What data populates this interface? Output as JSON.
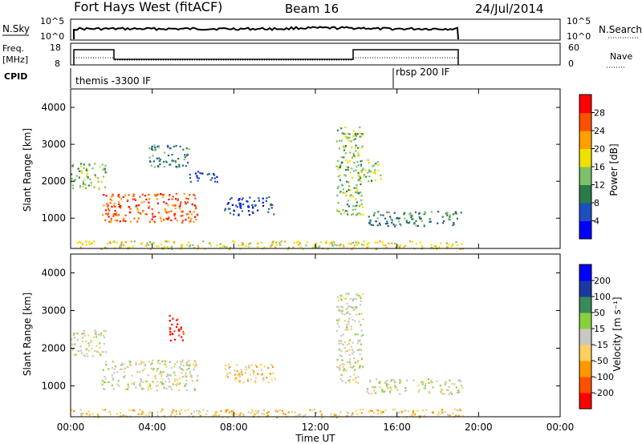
{
  "header": {
    "site": "Fort Hays West (fitACF)",
    "beam": "Beam 16",
    "date": "24/Jul/2014"
  },
  "status_panels": {
    "nsky": {
      "label": "N.Sky",
      "ticks": [
        "10^5",
        "10^0"
      ]
    },
    "nsearch": {
      "label": "N.Search",
      "ticks": [
        "10^5",
        "10^0"
      ]
    },
    "freq": {
      "label_line1": "Freq.",
      "label_line2": "[MHz]",
      "ticks": [
        "18",
        "8"
      ]
    },
    "nave": {
      "label": "Nave",
      "ticks": [
        "60",
        "0"
      ]
    },
    "cpid": {
      "label": "CPID",
      "entries": [
        {
          "text": "themis -3300 IF",
          "start_hour": 0
        },
        {
          "text": "rbsp 200 IF",
          "start_hour": 16
        }
      ]
    }
  },
  "chart_data": [
    {
      "type": "heatmap",
      "name": "power",
      "ylabel": "Slant Range [km]",
      "xlim": [
        0,
        24
      ],
      "ylim": [
        180,
        4500
      ],
      "yticks": [
        "4000",
        "3000",
        "2000",
        "1000"
      ],
      "colorbar": {
        "label": "Power [dB]",
        "ticks": [
          "28",
          "24",
          "20",
          "16",
          "12",
          "8",
          "4"
        ],
        "colors": [
          "#0000ff",
          "#1f4fbf",
          "#2a7a4a",
          "#7cc06a",
          "#f0e000",
          "#ffa000",
          "#ff5000",
          "#ff0000"
        ]
      },
      "echo_regions": [
        {
          "t": [
            0.0,
            1.7
          ],
          "r": [
            1800,
            2500
          ],
          "level": 3
        },
        {
          "t": [
            1.5,
            6.2
          ],
          "r": [
            900,
            1700
          ],
          "level": 6
        },
        {
          "t": [
            3.8,
            5.8
          ],
          "r": [
            2400,
            3000
          ],
          "level": 2
        },
        {
          "t": [
            5.8,
            7.2
          ],
          "r": [
            2000,
            2300
          ],
          "level": 1
        },
        {
          "t": [
            7.5,
            10.0
          ],
          "r": [
            1100,
            1600
          ],
          "level": 1
        },
        {
          "t": [
            13.0,
            14.3
          ],
          "r": [
            1100,
            3500
          ],
          "level": 3
        },
        {
          "t": [
            14.0,
            15.2
          ],
          "r": [
            2000,
            2600
          ],
          "level": 3
        },
        {
          "t": [
            14.5,
            19.2
          ],
          "r": [
            800,
            1200
          ],
          "level": 2
        },
        {
          "t": [
            0.0,
            19.2
          ],
          "r": [
            180,
            400
          ],
          "level": 4
        }
      ]
    },
    {
      "type": "heatmap",
      "name": "velocity",
      "ylabel": "Slant Range [km]",
      "xlabel": "Time UT",
      "xlim": [
        0,
        24
      ],
      "ylim": [
        180,
        4500
      ],
      "yticks": [
        "4000",
        "3000",
        "2000",
        "1000"
      ],
      "xticks": [
        "00:00",
        "04:00",
        "08:00",
        "12:00",
        "16:00",
        "20:00",
        "00:00"
      ],
      "colorbar": {
        "label": "Velocity [m s⁻¹]",
        "ticks": [
          "200",
          "100",
          "50",
          "15",
          "-15",
          "-50",
          "-100",
          "-200"
        ],
        "colors": [
          "#ff0000",
          "#ff5000",
          "#ff9800",
          "#ffd060",
          "#c8c8c0",
          "#88d040",
          "#3a8a5a",
          "#1a3aa0",
          "#0000ff"
        ]
      },
      "echo_regions": [
        {
          "t": [
            0.0,
            1.7
          ],
          "r": [
            1800,
            2500
          ],
          "level": 4
        },
        {
          "t": [
            1.5,
            6.2
          ],
          "r": [
            900,
            1700
          ],
          "level": 4
        },
        {
          "t": [
            4.8,
            5.5
          ],
          "r": [
            2100,
            2900
          ],
          "level": 0
        },
        {
          "t": [
            7.5,
            10.0
          ],
          "r": [
            1100,
            1600
          ],
          "level": 3
        },
        {
          "t": [
            13.0,
            14.3
          ],
          "r": [
            1100,
            3500
          ],
          "level": 4
        },
        {
          "t": [
            14.5,
            19.2
          ],
          "r": [
            800,
            1200
          ],
          "level": 4
        },
        {
          "t": [
            0.0,
            19.2
          ],
          "r": [
            180,
            400
          ],
          "level": 3
        }
      ]
    }
  ]
}
